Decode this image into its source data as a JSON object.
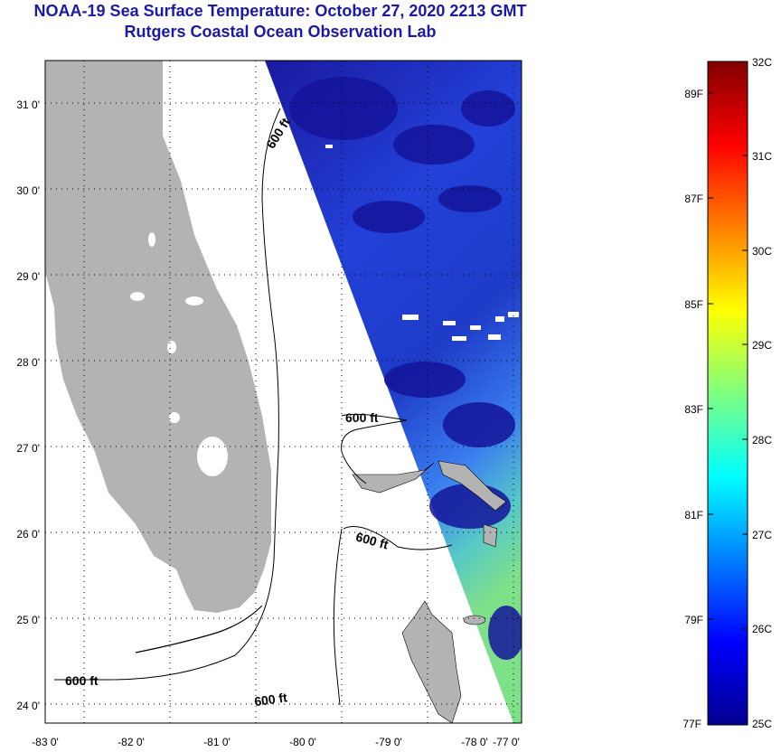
{
  "header": {
    "title": "NOAA-19 Sea Surface Temperature:  October 27, 2020 2213 GMT",
    "subtitle": "Rutgers Coastal Ocean Observation Lab"
  },
  "map": {
    "lon_ticks": [
      "-83 0'",
      "-82 0'",
      "-81 0'",
      "-80 0'",
      "-79 0'",
      "-78 0'",
      "-77 0'"
    ],
    "lat_ticks": [
      "24 0'",
      "25 0'",
      "26 0'",
      "27 0'",
      "28 0'",
      "29 0'",
      "30 0'",
      "31 0'"
    ],
    "depth_label": "600 ft",
    "colors": {
      "land": "#b3b3b3",
      "background": "#ffffff",
      "sst_dark": "#1a1aa0",
      "sst_mid": "#2e4fe6",
      "sst_warm": "#5fd4ae"
    }
  },
  "colorbar": {
    "fahrenheit": [
      "77F",
      "79F",
      "81F",
      "83F",
      "85F",
      "87F",
      "89F"
    ],
    "celsius": [
      "25C",
      "26C",
      "27C",
      "28C",
      "29C",
      "30C",
      "31C",
      "32C"
    ]
  }
}
